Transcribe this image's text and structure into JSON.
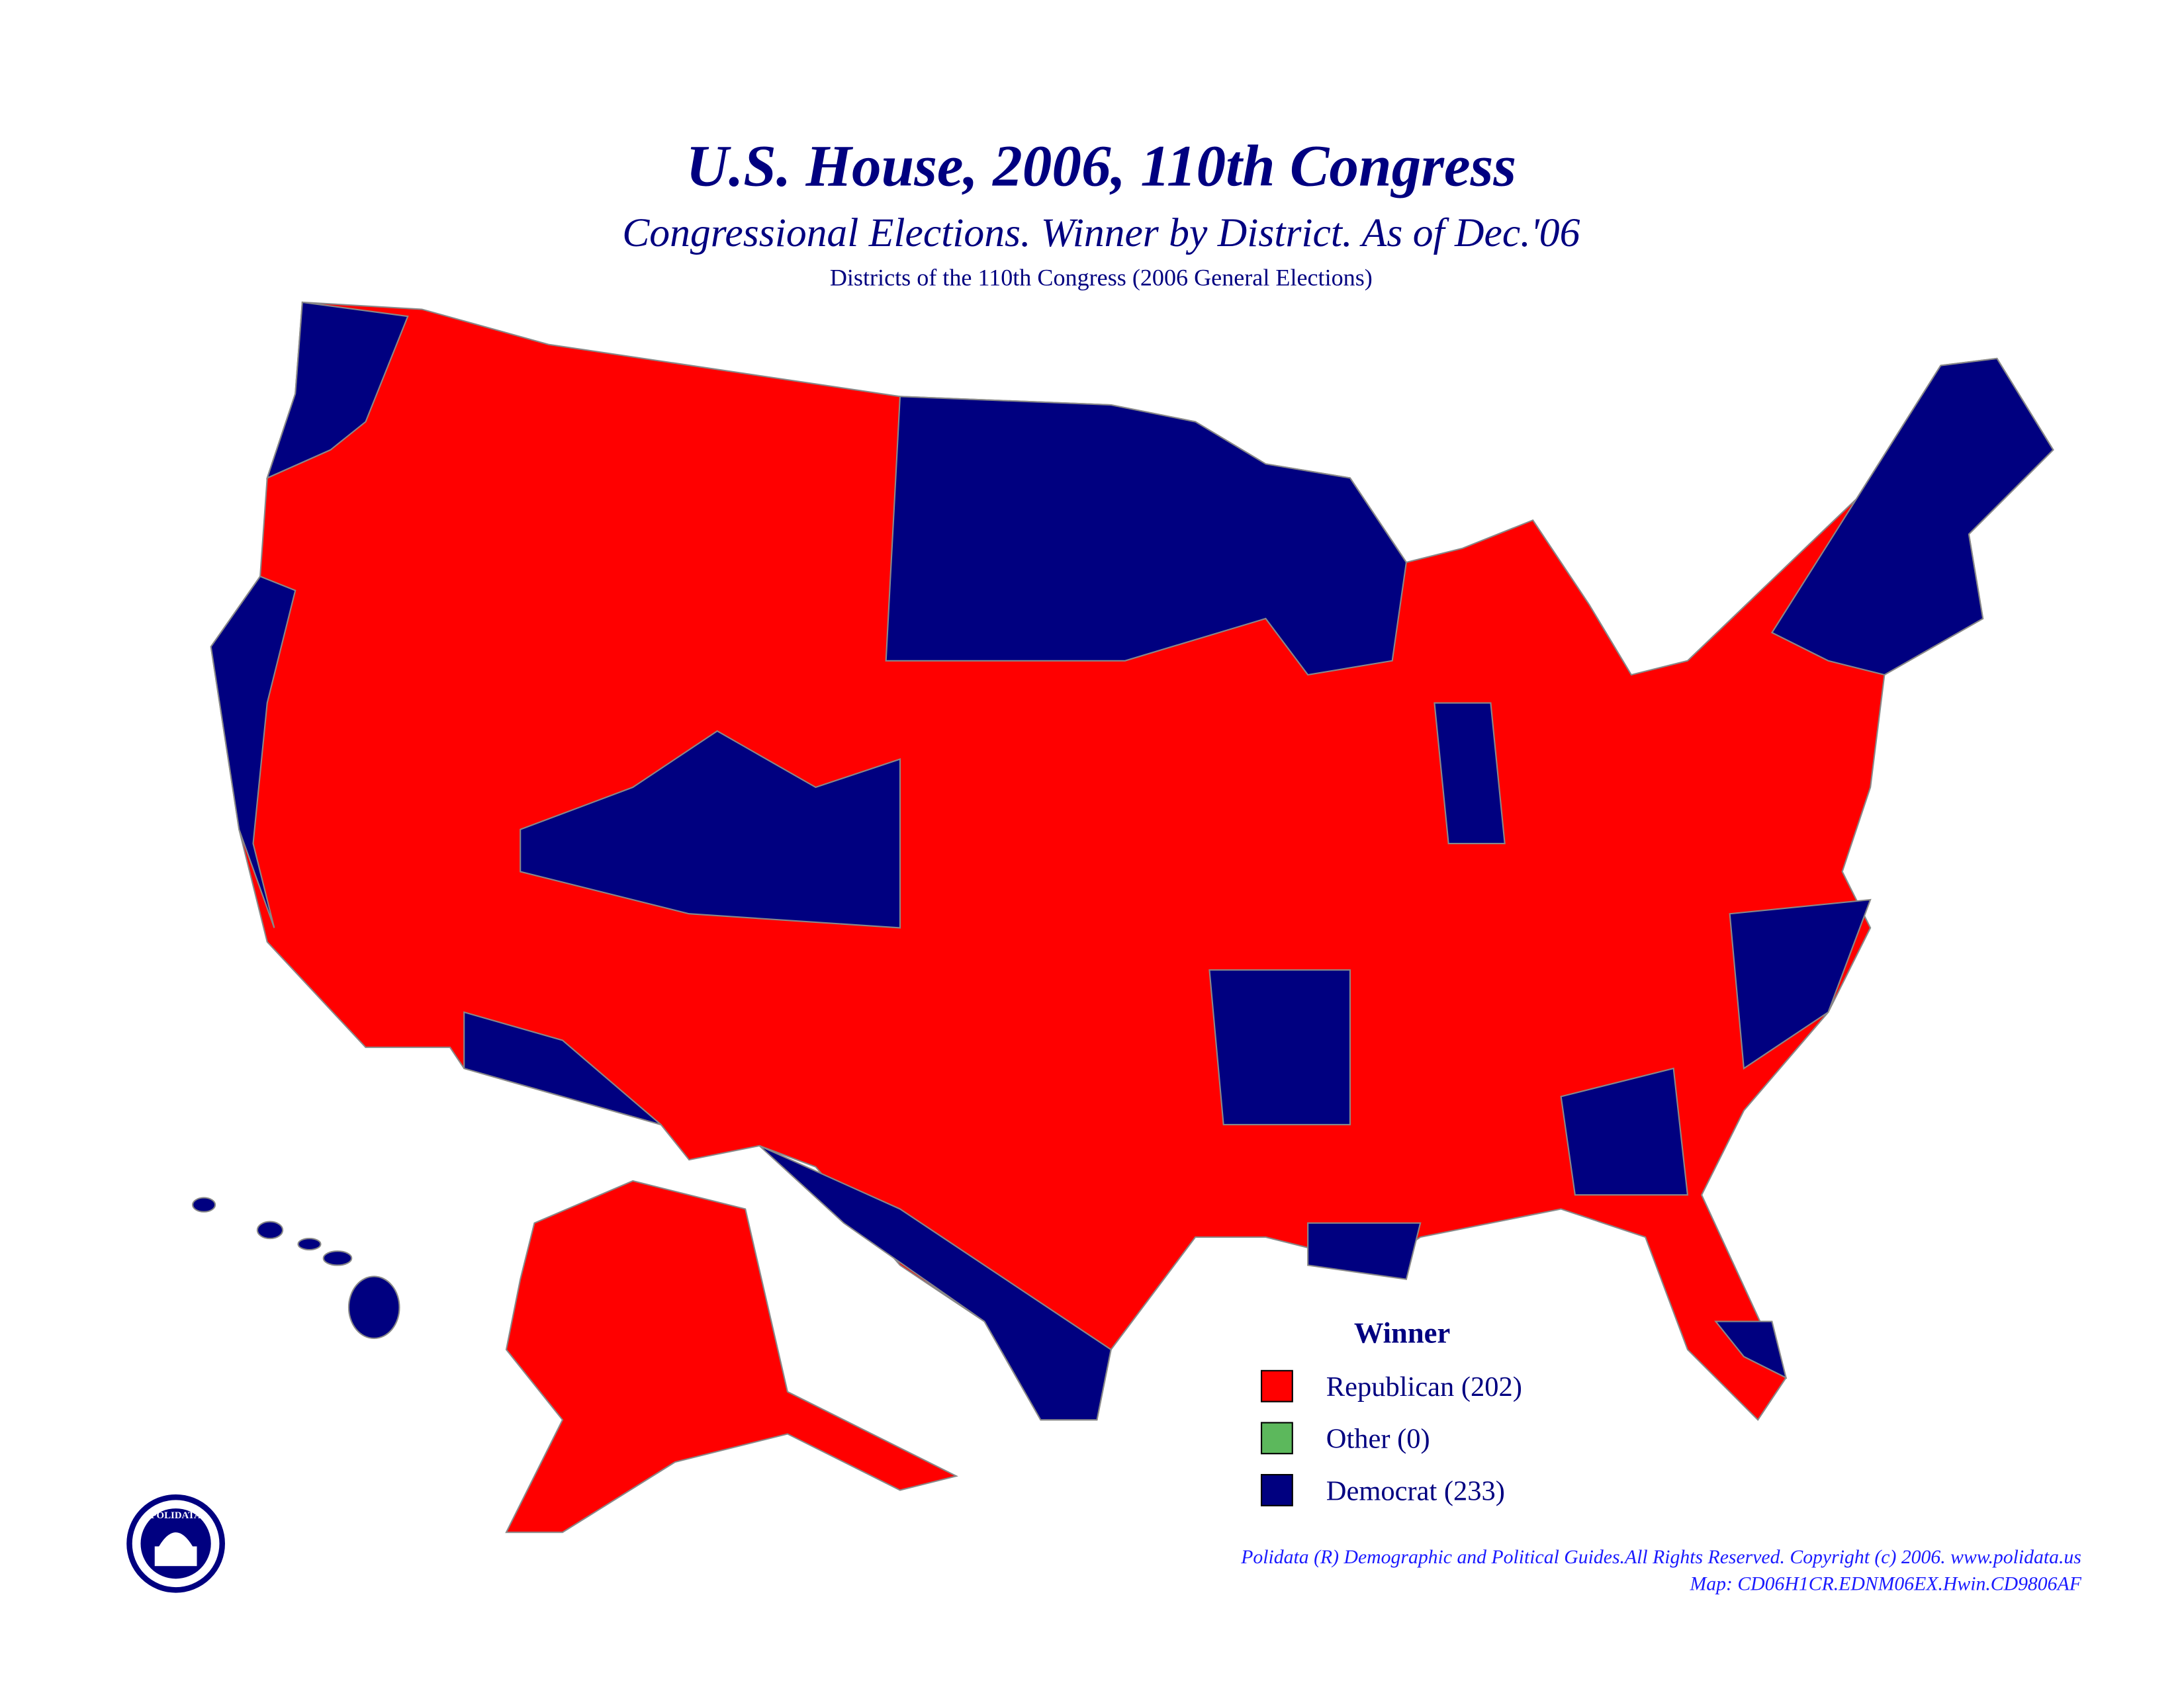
{
  "header": {
    "title": "U.S. House, 2006, 110th Congress",
    "subtitle": "Congressional Elections. Winner by District. As of Dec.'06",
    "caption": "Districts of the 110th Congress (2006 General Elections)"
  },
  "legend": {
    "title": "Winner",
    "items": [
      {
        "label": "Republican (202)",
        "color": "#ff0000"
      },
      {
        "label": "Other (0)",
        "color": "#5cb85c"
      },
      {
        "label": "Democrat (233)",
        "color": "#000080"
      }
    ]
  },
  "logo": {
    "label": "POLIDATA"
  },
  "footer": {
    "lines": [
      "Polidata (R) Demographic and Political Guides.All Rights Reserved. Copyright (c) 2006. www.polidata.us",
      "Map: CD06H1CR.EDNM06EX.Hwin.CD9806AF"
    ]
  }
}
